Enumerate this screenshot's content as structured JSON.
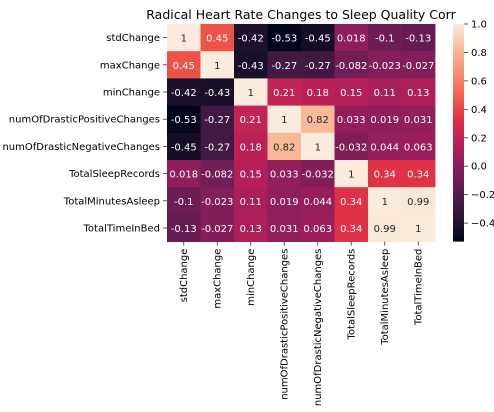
{
  "chart_data": {
    "type": "heatmap",
    "title": "Radical Heart Rate Changes to Sleep Quality Corr",
    "xlabel": "",
    "ylabel": "",
    "rows": [
      "stdChange",
      "maxChange",
      "minChange",
      "numOfDrasticPositiveChanges",
      "numOfDrasticNegativeChanges",
      "TotalSleepRecords",
      "TotalMinutesAsleep",
      "TotalTimeInBed"
    ],
    "cols": [
      "stdChange",
      "maxChange",
      "minChange",
      "numOfDrasticPositiveChanges",
      "numOfDrasticNegativeChanges",
      "TotalSleepRecords",
      "TotalMinutesAsleep",
      "TotalTimeInBed"
    ],
    "values": [
      [
        1,
        0.45,
        -0.42,
        -0.53,
        -0.45,
        0.018,
        -0.1,
        -0.13
      ],
      [
        0.45,
        1,
        -0.43,
        -0.27,
        -0.27,
        -0.082,
        -0.023,
        -0.027
      ],
      [
        -0.42,
        -0.43,
        1,
        0.21,
        0.18,
        0.15,
        0.11,
        0.13
      ],
      [
        -0.53,
        -0.27,
        0.21,
        1,
        0.82,
        0.033,
        0.019,
        0.031
      ],
      [
        -0.45,
        -0.27,
        0.18,
        0.82,
        1,
        -0.032,
        0.044,
        0.063
      ],
      [
        0.018,
        -0.082,
        0.15,
        0.033,
        -0.032,
        1,
        0.34,
        0.34
      ],
      [
        -0.1,
        -0.023,
        0.11,
        0.019,
        0.044,
        0.34,
        1,
        0.99
      ],
      [
        -0.13,
        -0.027,
        0.13,
        0.031,
        0.063,
        0.34,
        0.99,
        1
      ]
    ],
    "value_labels": [
      [
        "1",
        "0.45",
        "-0.42",
        "-0.53",
        "-0.45",
        "0.018",
        "-0.1",
        "-0.13"
      ],
      [
        "0.45",
        "1",
        "-0.43",
        "-0.27",
        "-0.27",
        "-0.082",
        "-0.023",
        "-0.027"
      ],
      [
        "-0.42",
        "-0.43",
        "1",
        "0.21",
        "0.18",
        "0.15",
        "0.11",
        "0.13"
      ],
      [
        "-0.53",
        "-0.27",
        "0.21",
        "1",
        "0.82",
        "0.033",
        "0.019",
        "0.031"
      ],
      [
        "-0.45",
        "-0.27",
        "0.18",
        "0.82",
        "1",
        "-0.032",
        "0.044",
        "0.063"
      ],
      [
        "0.018",
        "-0.082",
        "0.15",
        "0.033",
        "-0.032",
        "1",
        "0.34",
        "0.34"
      ],
      [
        "-0.1",
        "-0.023",
        "0.11",
        "0.019",
        "0.044",
        "0.34",
        "1",
        "0.99"
      ],
      [
        "-0.13",
        "-0.027",
        "0.13",
        "0.031",
        "0.063",
        "0.34",
        "0.99",
        "1"
      ]
    ],
    "colorbar": {
      "range": [
        -0.53,
        1
      ],
      "ticks": [
        -0.4,
        -0.2,
        0.0,
        0.2,
        0.4,
        0.6,
        0.8,
        1.0
      ],
      "tick_labels": [
        "−0.4",
        "−0.2",
        "0.0",
        "0.2",
        "0.4",
        "0.6",
        "0.8",
        "1.0"
      ],
      "colormap": "rocket",
      "stops": [
        "#03051a",
        "#2a1636",
        "#561b4e",
        "#841e5a",
        "#b41f5a",
        "#dd2c45",
        "#f1604c",
        "#f6906f",
        "#f7bc9a",
        "#faebdd"
      ]
    },
    "grid": false,
    "legend": "colorbar-right"
  }
}
